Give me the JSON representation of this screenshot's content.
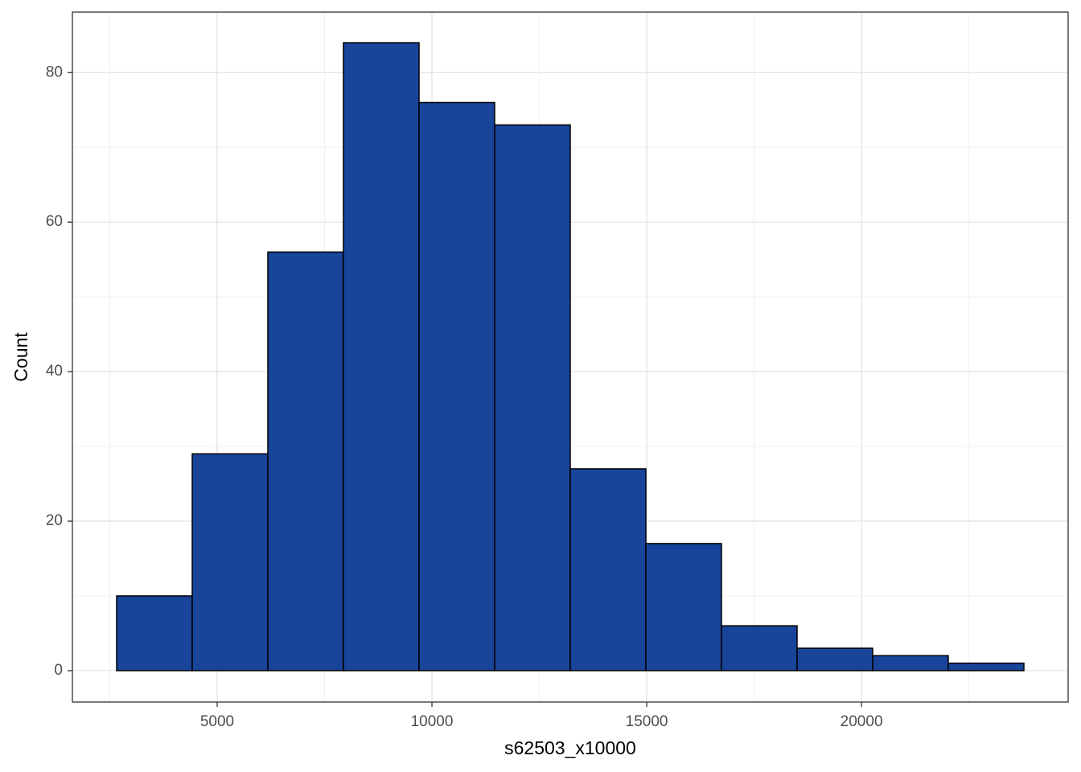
{
  "chart_data": {
    "type": "histogram",
    "x_label": "s62503_x10000",
    "y_label": "Count",
    "bins": [
      2660,
      4420,
      6180,
      7940,
      9700,
      11460,
      13220,
      14980,
      16740,
      18500,
      20260,
      22020,
      23780
    ],
    "values": [
      10,
      29,
      56,
      84,
      76,
      73,
      27,
      17,
      6,
      3,
      2,
      1
    ],
    "color": "#18449a",
    "xlim": [
      1630,
      24810
    ],
    "ylim": [
      -4.2,
      88.1
    ],
    "xticks": [
      5000,
      10000,
      15000,
      20000
    ],
    "yticks": [
      0,
      20,
      40,
      60,
      80
    ],
    "x_minor_ticks": [
      2500,
      7500,
      12500,
      17500,
      22500
    ],
    "y_minor_ticks": [
      10,
      30,
      50,
      70
    ],
    "grid": true
  }
}
